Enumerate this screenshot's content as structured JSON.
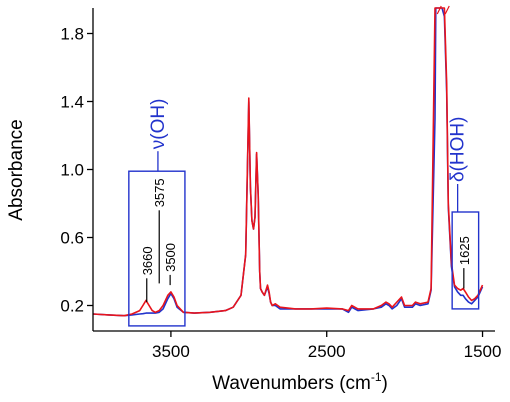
{
  "chart_data": {
    "type": "line",
    "xlabel": "Wavenumbers (cm",
    "xlabel_sup": "-1",
    "xlabel_end": ")",
    "ylabel": "Absorbance",
    "xlim": [
      4000,
      1420
    ],
    "ylim": [
      0.05,
      1.95
    ],
    "x_reversed": true,
    "x_ticks": [
      3500,
      2500,
      1500
    ],
    "y_ticks": [
      0.2,
      0.6,
      1.0,
      1.4,
      1.8
    ],
    "y_tick_labels": [
      "0.2",
      "0.6",
      "1.0",
      "1.4",
      "1.8"
    ],
    "grid": false,
    "series": [
      {
        "color": "#e8141c",
        "x": [
          4000,
          3900,
          3800,
          3750,
          3700,
          3680,
          3660,
          3640,
          3620,
          3600,
          3575,
          3550,
          3520,
          3500,
          3480,
          3460,
          3420,
          3350,
          3250,
          3150,
          3100,
          3050,
          3020,
          3000,
          2990,
          2980,
          2970,
          2960,
          2950,
          2940,
          2930,
          2925,
          2915,
          2900,
          2880,
          2870,
          2860,
          2850,
          2830,
          2800,
          2700,
          2600,
          2500,
          2400,
          2360,
          2340,
          2300,
          2200,
          2150,
          2120,
          2100,
          2080,
          2050,
          2020,
          2000,
          1950,
          1930,
          1900,
          1850,
          1830,
          1805,
          1800,
          1780,
          1760,
          1745,
          1730,
          1720,
          1700,
          1680,
          1660,
          1640,
          1625,
          1610,
          1590,
          1570,
          1550,
          1530,
          1510,
          1500
        ],
        "y": [
          0.15,
          0.145,
          0.14,
          0.15,
          0.17,
          0.2,
          0.23,
          0.2,
          0.17,
          0.16,
          0.17,
          0.2,
          0.26,
          0.28,
          0.25,
          0.2,
          0.16,
          0.155,
          0.16,
          0.17,
          0.19,
          0.26,
          0.5,
          1.42,
          0.9,
          0.7,
          0.65,
          0.72,
          1.1,
          0.85,
          0.4,
          0.3,
          0.28,
          0.26,
          0.32,
          0.28,
          0.22,
          0.2,
          0.21,
          0.19,
          0.18,
          0.18,
          0.185,
          0.18,
          0.17,
          0.2,
          0.18,
          0.18,
          0.2,
          0.22,
          0.21,
          0.19,
          0.22,
          0.25,
          0.2,
          0.2,
          0.22,
          0.21,
          0.22,
          0.3,
          1.95,
          1.95,
          1.95,
          1.95,
          1.95,
          1.5,
          0.8,
          0.45,
          0.32,
          0.3,
          0.29,
          0.3,
          0.28,
          0.25,
          0.23,
          0.24,
          0.26,
          0.3,
          0.32
        ]
      },
      {
        "color": "#2233cc",
        "x": [
          4000,
          3900,
          3800,
          3750,
          3700,
          3680,
          3660,
          3640,
          3620,
          3600,
          3575,
          3550,
          3520,
          3500,
          3480,
          3460,
          3420,
          3350,
          3250,
          3150,
          3100,
          3050,
          3020,
          3000,
          2990,
          2980,
          2970,
          2960,
          2950,
          2940,
          2930,
          2925,
          2915,
          2900,
          2880,
          2870,
          2860,
          2850,
          2830,
          2800,
          2700,
          2600,
          2500,
          2400,
          2360,
          2340,
          2300,
          2200,
          2150,
          2120,
          2100,
          2080,
          2050,
          2020,
          2000,
          1950,
          1930,
          1900,
          1850,
          1830,
          1805,
          1800,
          1780,
          1760,
          1745,
          1730,
          1720,
          1700,
          1680,
          1660,
          1640,
          1625,
          1610,
          1590,
          1570,
          1550,
          1530,
          1510,
          1500
        ],
        "y": [
          0.15,
          0.145,
          0.14,
          0.145,
          0.15,
          0.152,
          0.155,
          0.155,
          0.155,
          0.155,
          0.16,
          0.18,
          0.24,
          0.27,
          0.24,
          0.19,
          0.16,
          0.155,
          0.16,
          0.17,
          0.19,
          0.26,
          0.5,
          1.4,
          0.9,
          0.7,
          0.65,
          0.72,
          1.09,
          0.85,
          0.4,
          0.3,
          0.28,
          0.26,
          0.31,
          0.27,
          0.22,
          0.2,
          0.2,
          0.18,
          0.18,
          0.18,
          0.18,
          0.18,
          0.16,
          0.19,
          0.17,
          0.18,
          0.19,
          0.21,
          0.2,
          0.18,
          0.2,
          0.24,
          0.19,
          0.19,
          0.21,
          0.2,
          0.21,
          0.29,
          1.3,
          1.95,
          1.95,
          1.95,
          1.9,
          1.45,
          0.78,
          0.43,
          0.31,
          0.28,
          0.26,
          0.26,
          0.24,
          0.22,
          0.21,
          0.23,
          0.25,
          0.29,
          0.31
        ]
      }
    ],
    "annotations": {
      "oh_band": {
        "label": "ν(OH)",
        "color": "#2233cc",
        "x_range": [
          3770,
          3410
        ],
        "y_range": [
          0.08,
          0.99
        ]
      },
      "hoh_band": {
        "label": "δ(HOH)",
        "color": "#2233cc",
        "x_range": [
          1695,
          1525
        ],
        "y_range": [
          0.18,
          0.75
        ]
      },
      "peak_labels": [
        {
          "text": "3660",
          "x": 3655,
          "y_line_bottom": 0.22,
          "y_line_top": 0.36
        },
        {
          "text": "3575",
          "x": 3575,
          "y_line_bottom": 0.33,
          "y_line_top": 0.76
        },
        {
          "text": "3500",
          "x": 3505,
          "y_line_bottom": 0.32,
          "y_line_top": 0.38
        },
        {
          "text": "1625",
          "x": 1620,
          "y_line_bottom": 0.3,
          "y_line_top": 0.42
        }
      ]
    }
  }
}
